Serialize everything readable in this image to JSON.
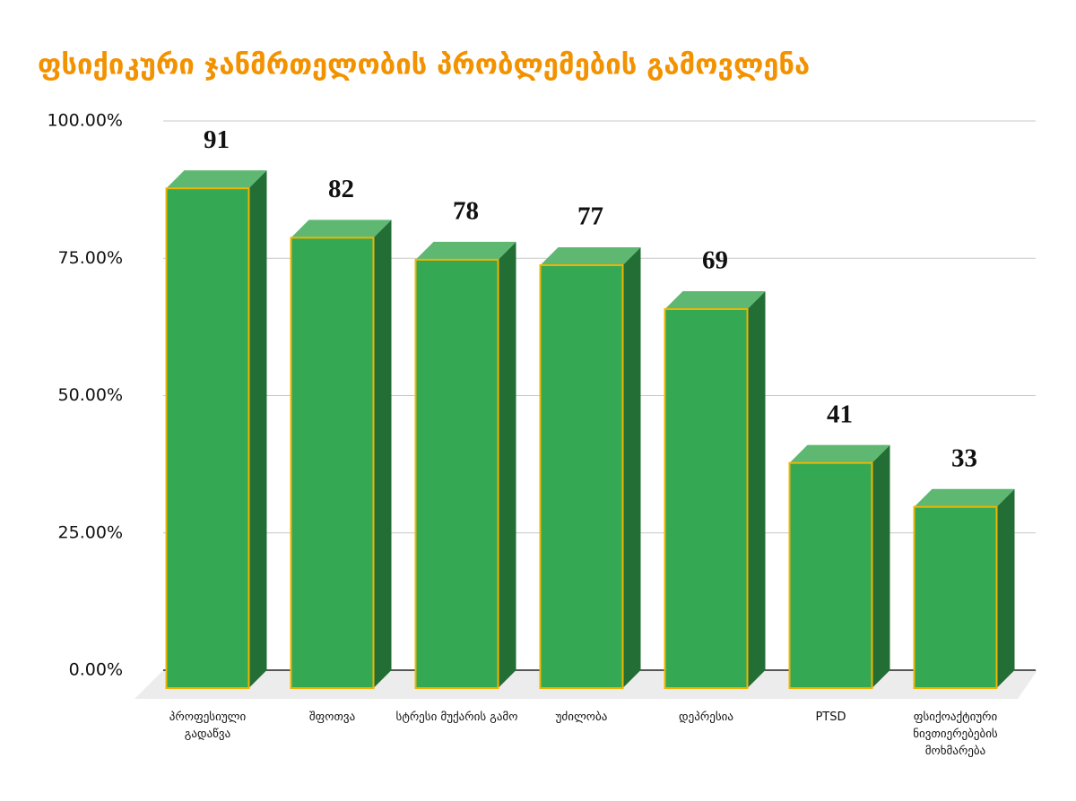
{
  "chart_data": {
    "type": "bar3d",
    "title": "ფსიქიკური ჯანმრთელობის პრობლემების გამოვლენა",
    "categories": [
      "პროფესიული გადაწვა",
      "შფოთვა",
      "სტრესი მუქარის გამო",
      "უძილობა",
      "დეპრესია",
      "PTSD",
      "ფსიქოაქტიური ნივთიერებების მოხმარება"
    ],
    "values": [
      91,
      82,
      78,
      77,
      69,
      41,
      33
    ],
    "color": "#35a853",
    "ylim": [
      0,
      100
    ],
    "yticks": [
      {
        "value": 0,
        "label": "0.00%"
      },
      {
        "value": 25,
        "label": "25.00%"
      },
      {
        "value": 50,
        "label": "50.00%"
      },
      {
        "value": 75,
        "label": "75.00%"
      },
      {
        "value": 100,
        "label": "100.00%"
      }
    ],
    "grid": true
  }
}
